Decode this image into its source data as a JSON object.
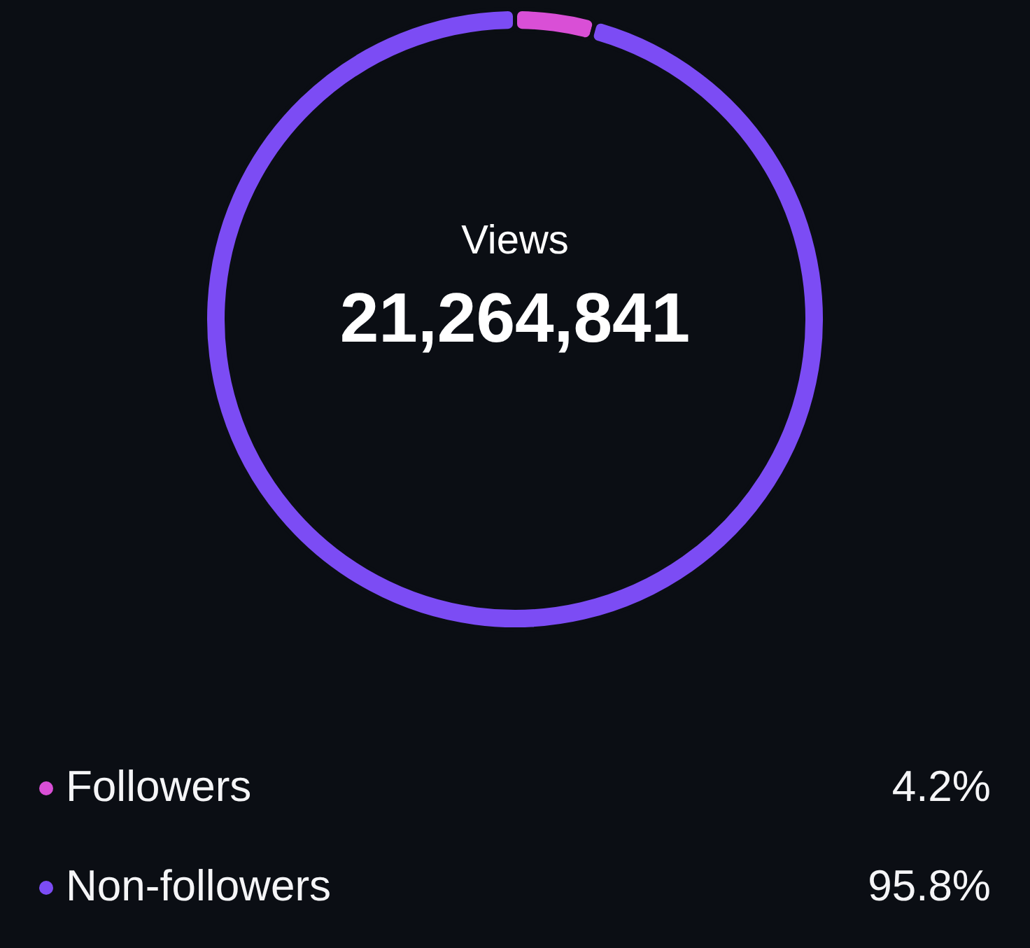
{
  "chart_data": {
    "type": "donut",
    "title": "Views",
    "subtitle": "21,264,841",
    "categories": [
      "Followers",
      "Non-followers"
    ],
    "values": [
      4.2,
      95.8
    ],
    "colors": [
      "#d94fd6",
      "#7c4cf4"
    ],
    "value_labels": [
      "4.2%",
      "95.8%"
    ],
    "legend": "bottom"
  }
}
